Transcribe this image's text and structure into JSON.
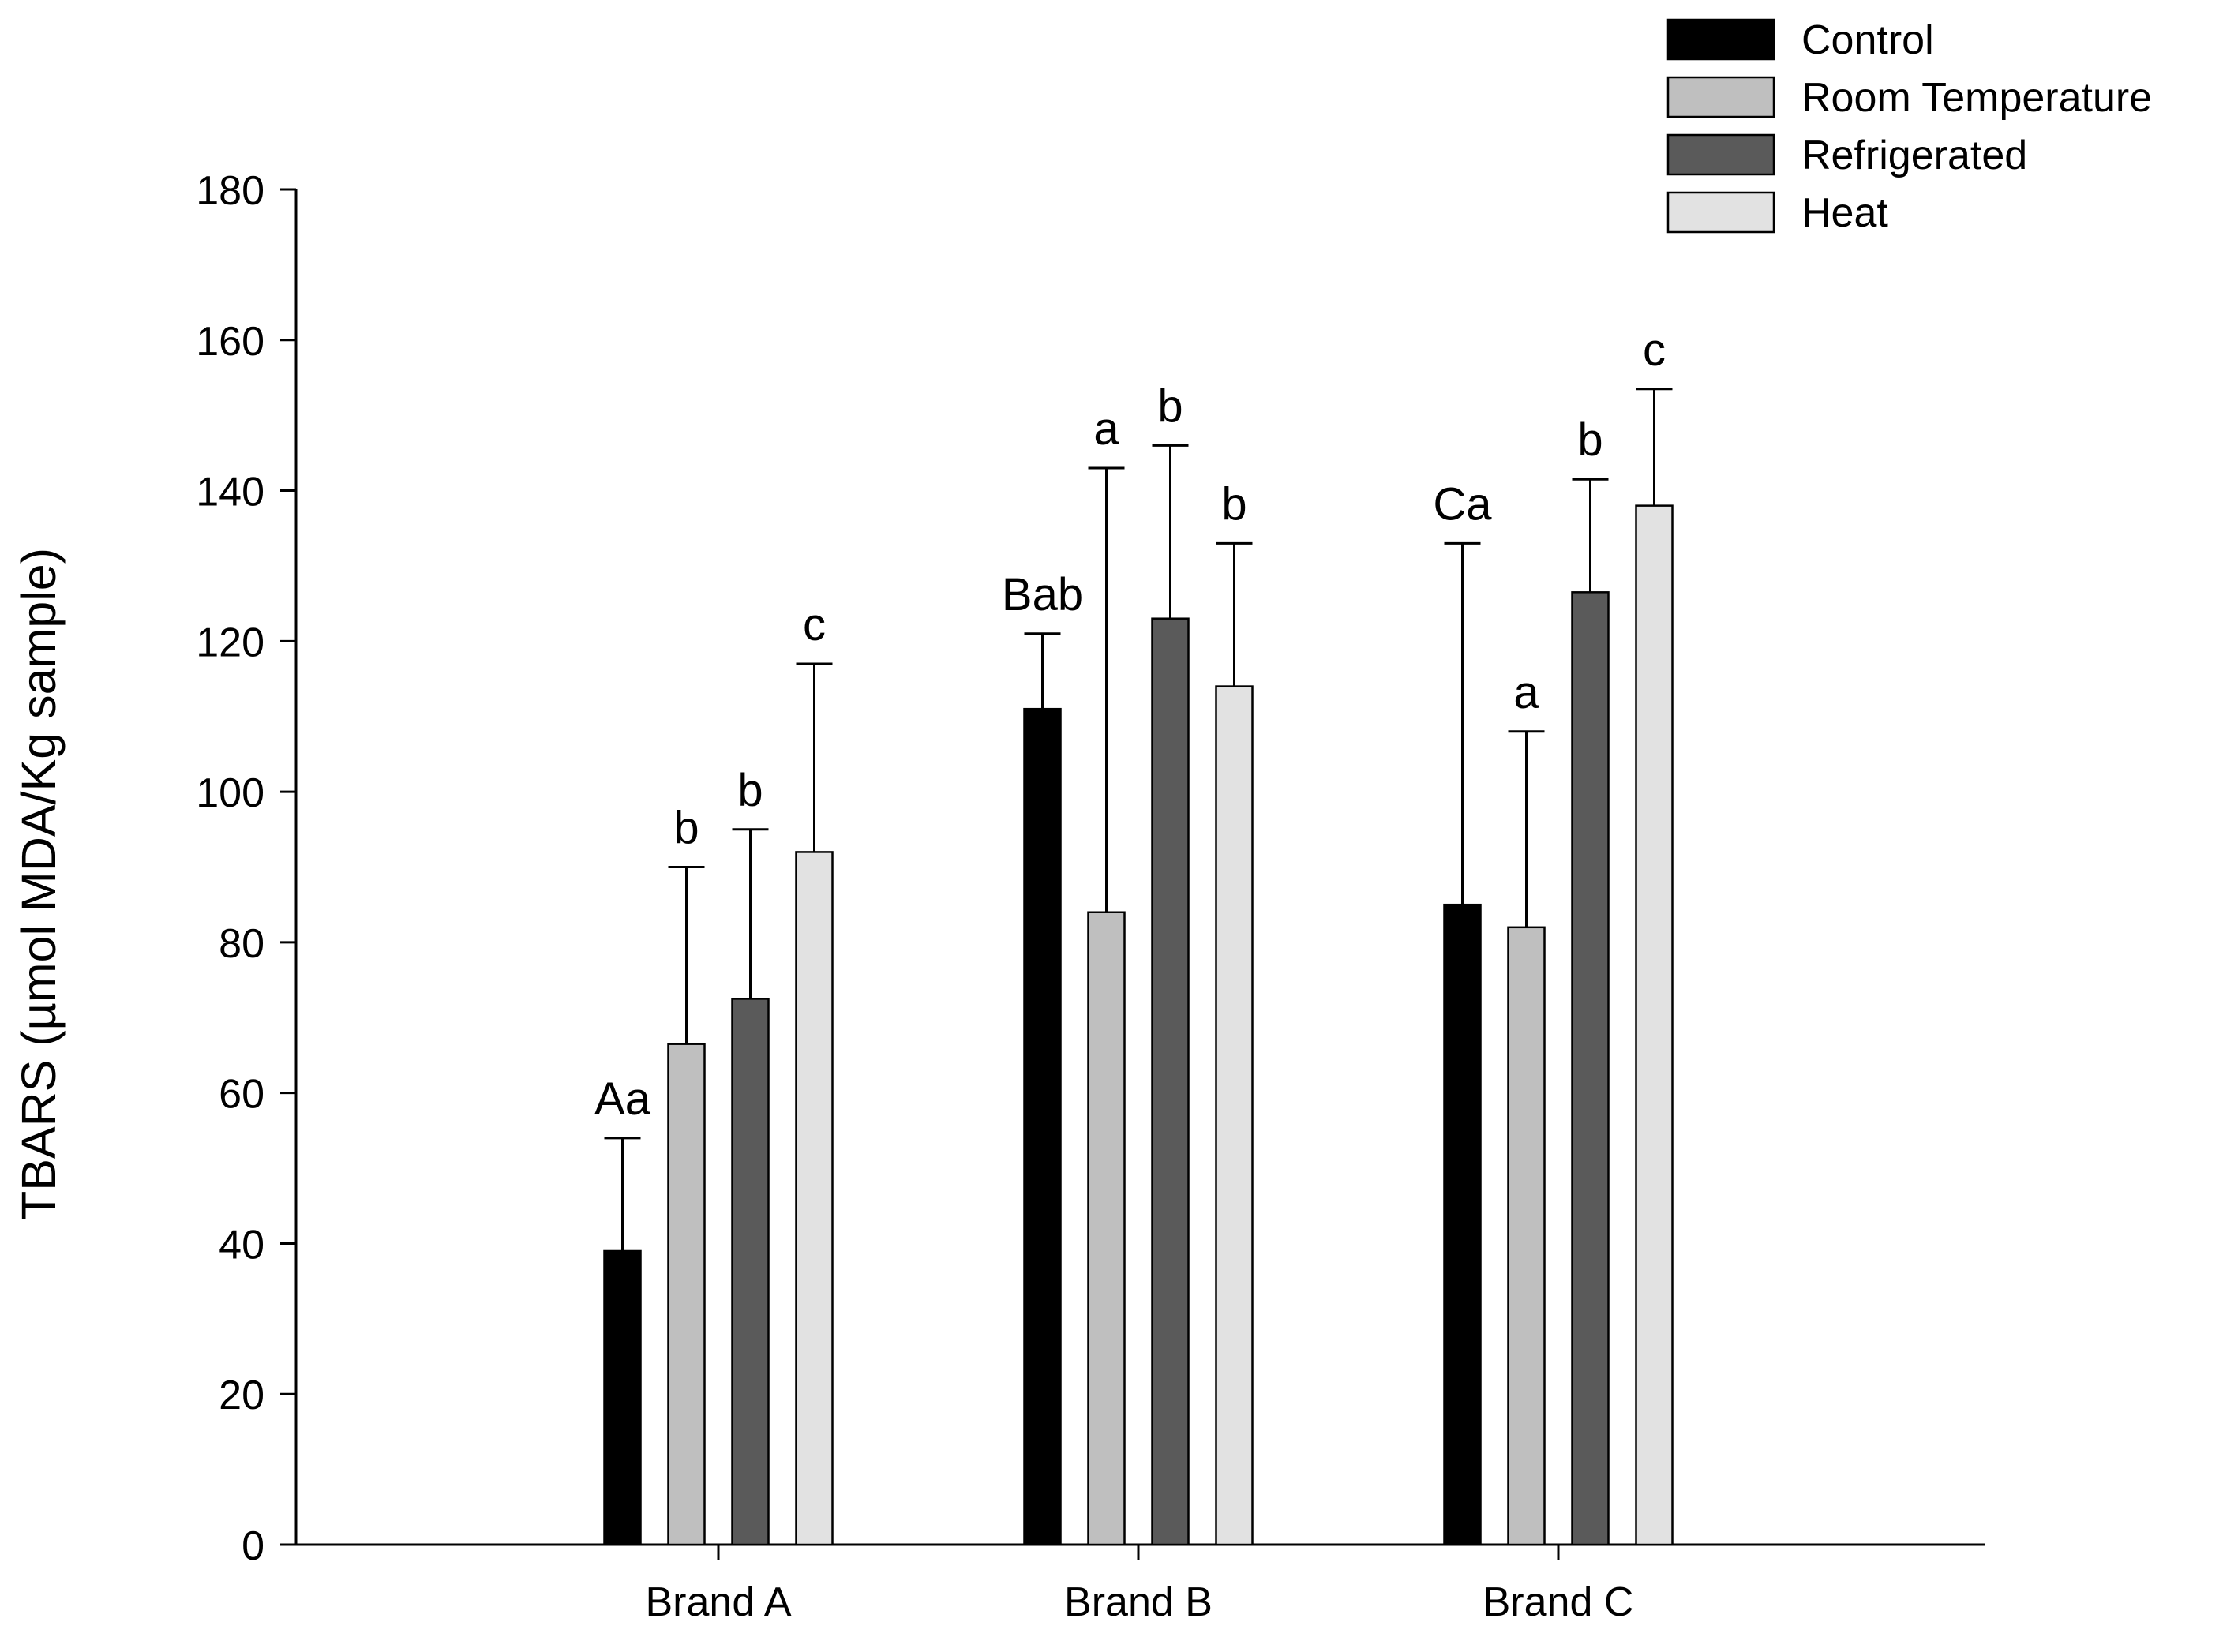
{
  "chart_data": {
    "type": "bar",
    "title": "",
    "xlabel": "",
    "ylabel": "TBARS (µmol MDA/Kg sample)",
    "ylim": [
      0,
      180
    ],
    "yticks": [
      0,
      20,
      40,
      60,
      80,
      100,
      120,
      140,
      160,
      180
    ],
    "grid": false,
    "legend_position": "top-right",
    "error_bars": "upper",
    "categories": [
      "Brand A",
      "Brand B",
      "Brand C"
    ],
    "series": [
      {
        "name": "Control",
        "color": "#000000",
        "values": [
          39,
          111,
          85
        ],
        "errors": [
          15,
          10,
          48
        ],
        "labels": [
          "Aa",
          "Bab",
          "Ca"
        ]
      },
      {
        "name": "Room Temperature",
        "color": "#bfbfbf",
        "values": [
          66.5,
          84,
          82
        ],
        "errors": [
          23.5,
          59,
          26
        ],
        "labels": [
          "b",
          "a",
          "a"
        ]
      },
      {
        "name": "Refrigerated",
        "color": "#5a5a5a",
        "values": [
          72.5,
          123,
          126.5
        ],
        "errors": [
          22.5,
          23,
          15
        ],
        "labels": [
          "b",
          "b",
          "b"
        ]
      },
      {
        "name": "Heat",
        "color": "#e2e2e2",
        "values": [
          92,
          114,
          138
        ],
        "errors": [
          25,
          19,
          15.5
        ],
        "labels": [
          "c",
          "b",
          "c"
        ]
      }
    ]
  }
}
